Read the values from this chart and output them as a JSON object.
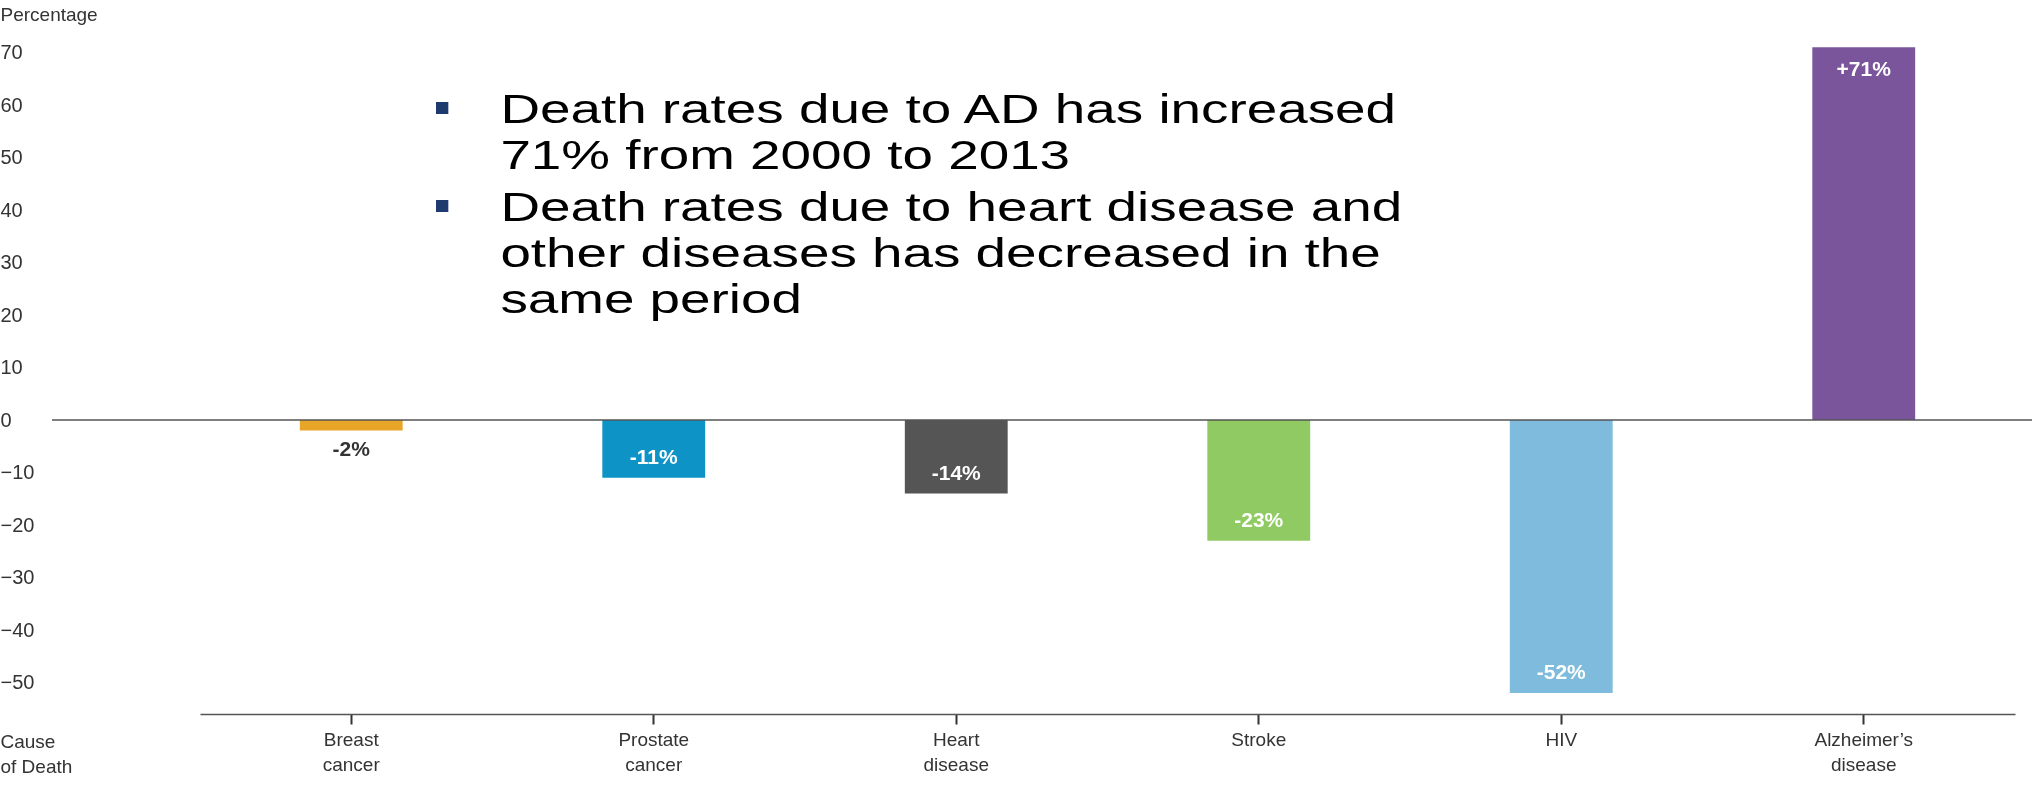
{
  "chart_data": {
    "type": "bar",
    "ylabel": "Percentage",
    "xlabel": "Cause of Death",
    "categories": [
      "Breast cancer",
      "Prostate cancer",
      "Heart disease",
      "Stroke",
      "HIV",
      "Alzheimer’s disease"
    ],
    "values": [
      -2,
      -11,
      -14,
      -23,
      -52,
      71
    ],
    "colors": [
      "#e8a628",
      "#0d93c6",
      "#555555",
      "#8fcb62",
      "#7fbbdc",
      "#7a559c"
    ],
    "value_labels": [
      "-2%",
      "-11%",
      "-14%",
      "-23%",
      "-52%",
      "+71%"
    ],
    "ylim": [
      -56,
      72
    ],
    "yticks": [
      -50,
      -40,
      -30,
      -20,
      -10,
      0,
      10,
      20,
      30,
      40,
      50,
      60,
      70
    ],
    "ref_lines": [
      {
        "axis": "y",
        "value": 0
      }
    ],
    "grid": false,
    "legend": false,
    "annotations": [
      "Death rates due to AD has increased 71% from 2000 to 2013",
      "Death rates due to heart disease and other diseases has decreased in the same period"
    ]
  }
}
